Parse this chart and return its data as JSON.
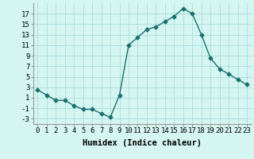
{
  "x": [
    0,
    1,
    2,
    3,
    4,
    5,
    6,
    7,
    8,
    9,
    10,
    11,
    12,
    13,
    14,
    15,
    16,
    17,
    18,
    19,
    20,
    21,
    22,
    23
  ],
  "y": [
    2.5,
    1.5,
    0.5,
    0.5,
    -0.5,
    -1.2,
    -1.2,
    -2.0,
    -2.7,
    1.5,
    11.0,
    12.5,
    14.0,
    14.5,
    15.5,
    16.5,
    18.0,
    17.0,
    13.0,
    8.5,
    6.5,
    5.5,
    4.5,
    3.5
  ],
  "line_color": "#1a7070",
  "marker": "D",
  "marker_size": 2.5,
  "bg_color": "#d4f5f0",
  "grid_color": "#aadddd",
  "xlabel": "Humidex (Indice chaleur)",
  "ylabel": "",
  "yticks": [
    -3,
    -1,
    1,
    3,
    5,
    7,
    9,
    11,
    13,
    15,
    17
  ],
  "xlim": [
    -0.5,
    23.5
  ],
  "ylim": [
    -4,
    19
  ],
  "xlabel_fontsize": 7.5,
  "tick_fontsize": 6.5,
  "line_width": 1.0
}
